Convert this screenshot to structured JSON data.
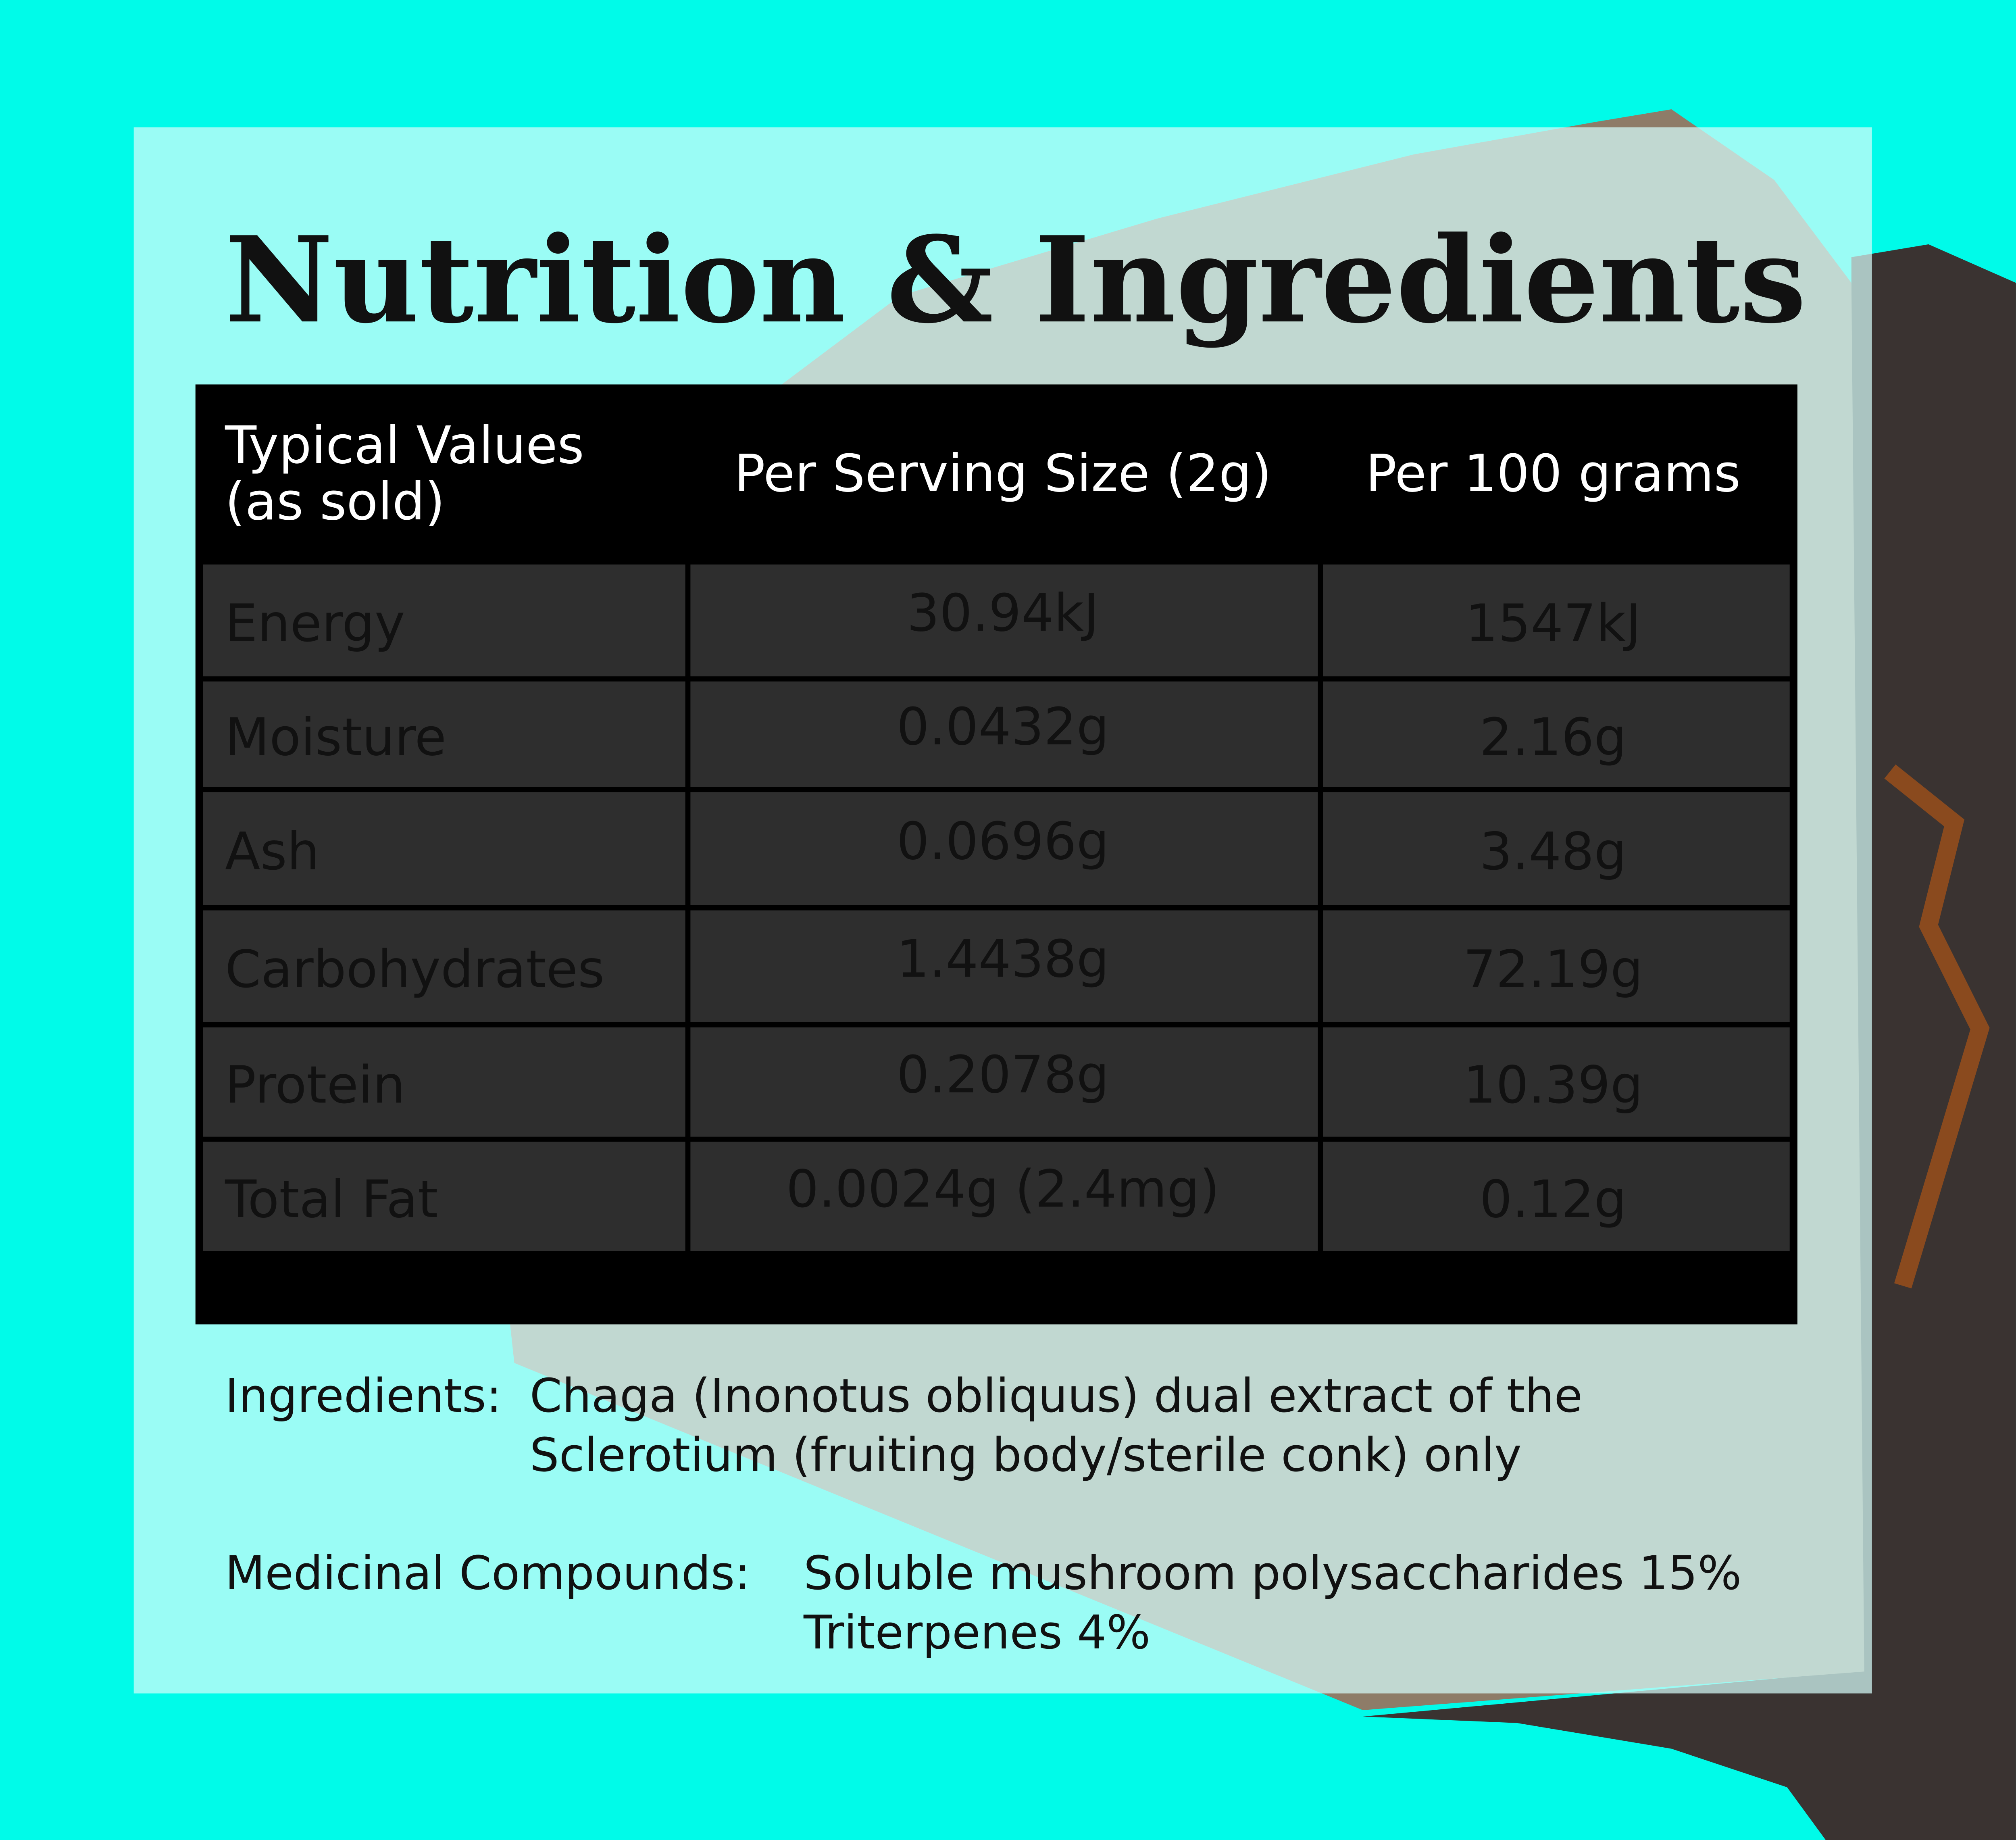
{
  "header": {
    "title": "Nutrition & Ingredients"
  },
  "table": {
    "headers": [
      [
        "Typical Values",
        "(as sold)"
      ],
      [
        "Per Serving Size (2g)"
      ],
      [
        "Per 100 grams"
      ]
    ],
    "rows": [
      [
        "Energy",
        "30.94kJ",
        "1547kJ"
      ],
      [
        "Moisture",
        "0.0432g",
        "2.16g"
      ],
      [
        "Ash",
        "0.0696g",
        "3.48g"
      ],
      [
        "Carbohydrates",
        "1.4438g",
        "72.19g"
      ],
      [
        "Protein",
        "0.2078g",
        "10.39g"
      ],
      [
        "Total Fat",
        "0.0024g (2.4mg)",
        "0.12g"
      ]
    ]
  },
  "ingredients": {
    "label": "Ingredients:",
    "lines": [
      "Chaga (Inonotus obliquus) dual extract of the",
      "Sclerotium (fruiting body/sterile conk) only"
    ]
  },
  "compounds": {
    "label": "Medicinal Compounds:",
    "lines": [
      "Soluble mushroom polysaccharides 15%",
      "Triterpenes 4%"
    ]
  }
}
